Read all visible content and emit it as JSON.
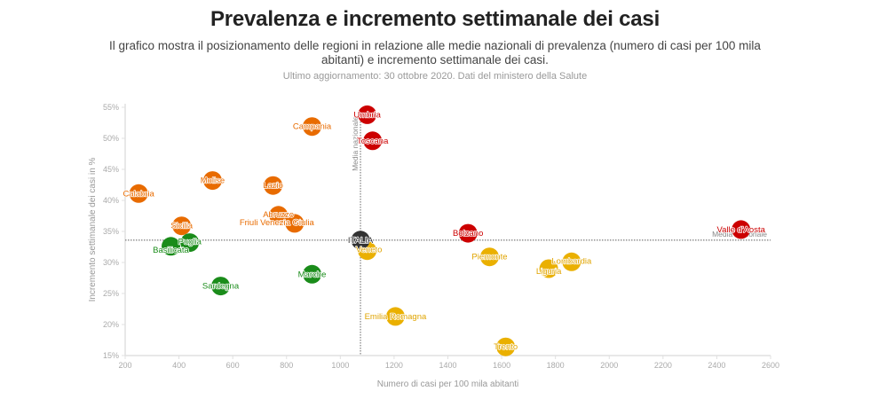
{
  "header": {
    "title": "Prevalenza e incremento settimanale dei casi",
    "subtitle": "Il grafico mostra il posizionamento delle regioni in relazione alle medie nazionali di prevalenza (numero di casi per 100 mila abitanti) e incremento settimanale dei casi.",
    "source": "Ultimo aggiornamento: 30 ottobre 2020. Dati del ministero della Salute"
  },
  "colors": {
    "red": "#cc0000",
    "orange": "#e86b00",
    "yellow": "#eab000",
    "green": "#1a8c1a",
    "national": "#333333",
    "axis": "#e0e0e0",
    "average_line": "#888888"
  },
  "chart_data": {
    "type": "scatter",
    "title": "Prevalenza e incremento settimanale dei casi",
    "xlabel": "Numero di casi per 100 mila abitanti",
    "ylabel": "Incremento settimanale dei casi in %",
    "xlim": [
      200,
      2600
    ],
    "ylim": [
      15,
      55
    ],
    "x_ticks": [
      200,
      400,
      600,
      800,
      1000,
      1200,
      1400,
      1600,
      1800,
      2000,
      2200,
      2400,
      2600
    ],
    "x_tick_labels": [
      "200",
      "400",
      "600",
      "800",
      "1000",
      "1200",
      "1400",
      "1600",
      "1800",
      "2000",
      "2200",
      "2400",
      "2600"
    ],
    "y_ticks": [
      15,
      20,
      25,
      30,
      35,
      40,
      45,
      50,
      55
    ],
    "y_tick_labels": [
      "15%",
      "20%",
      "25%",
      "30%",
      "35%",
      "40%",
      "45%",
      "50%",
      "55%"
    ],
    "grid": false,
    "reference_lines": {
      "x": {
        "value": 1075,
        "label": "Media nazionale"
      },
      "y": {
        "value": 33.6,
        "label": "Media nazionale"
      }
    },
    "points": [
      {
        "name": "Umbria",
        "x": 1100,
        "y": 53.8,
        "group": "red"
      },
      {
        "name": "Toscana",
        "x": 1120,
        "y": 49.6,
        "group": "red"
      },
      {
        "name": "Bolzano",
        "x": 1475,
        "y": 34.7,
        "group": "red"
      },
      {
        "name": "Valle d'Aosta",
        "x": 2490,
        "y": 35.3,
        "group": "red"
      },
      {
        "name": "Campania",
        "x": 895,
        "y": 51.9,
        "group": "orange"
      },
      {
        "name": "Calabria",
        "x": 250,
        "y": 41.1,
        "group": "orange"
      },
      {
        "name": "Molise",
        "x": 525,
        "y": 43.2,
        "group": "orange"
      },
      {
        "name": "Lazio",
        "x": 750,
        "y": 42.4,
        "group": "orange"
      },
      {
        "name": "Abruzzo",
        "x": 770,
        "y": 37.6,
        "group": "orange"
      },
      {
        "name": "Friuli Venezia Giulia",
        "x": 830,
        "y": 36.3,
        "group": "orange"
      },
      {
        "name": "Sicilia",
        "x": 410,
        "y": 35.9,
        "group": "orange"
      },
      {
        "name": "Veneto",
        "x": 1100,
        "y": 31.9,
        "group": "yellow"
      },
      {
        "name": "Piemonte",
        "x": 1555,
        "y": 30.9,
        "group": "yellow"
      },
      {
        "name": "Lombardia",
        "x": 1860,
        "y": 30.1,
        "group": "yellow"
      },
      {
        "name": "Liguria",
        "x": 1775,
        "y": 29.0,
        "group": "yellow"
      },
      {
        "name": "Emilia Romagna",
        "x": 1205,
        "y": 21.3,
        "group": "yellow"
      },
      {
        "name": "Trento",
        "x": 1615,
        "y": 16.4,
        "group": "yellow"
      },
      {
        "name": "Basilicata",
        "x": 370,
        "y": 32.6,
        "group": "green"
      },
      {
        "name": "Puglia",
        "x": 440,
        "y": 33.2,
        "group": "green"
      },
      {
        "name": "Sardegna",
        "x": 555,
        "y": 26.2,
        "group": "green"
      },
      {
        "name": "Marche",
        "x": 895,
        "y": 28.1,
        "group": "green"
      },
      {
        "name": "ITALIA",
        "x": 1075,
        "y": 33.6,
        "group": "national"
      }
    ]
  }
}
